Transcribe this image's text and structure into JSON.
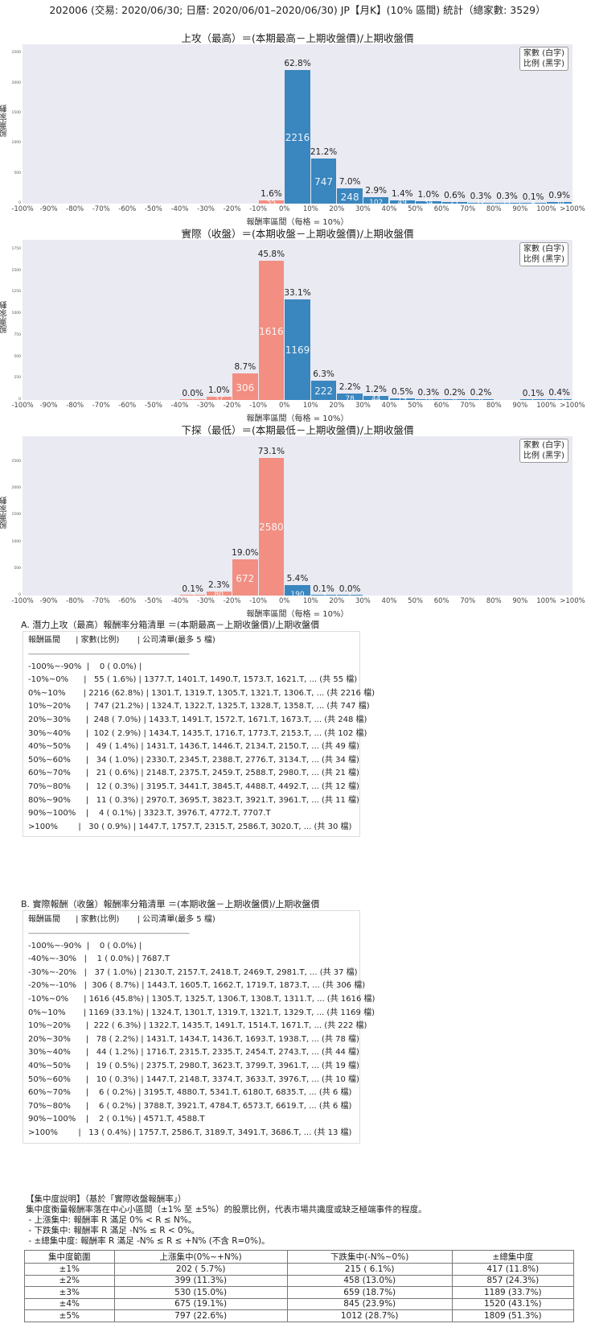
{
  "page": {
    "title": "202006 (交易: 2020/06/30; 日曆: 2020/06/01–2020/06/30) JP【月K】(10% 區間) 統計（總家數: 3529）"
  },
  "chart_common": {
    "ylabel": "股票家數",
    "xlabel": "報酬率區間（每格 = 10%）",
    "legend_line1": "家數 (白字)",
    "legend_line2": "比例 (黑字)",
    "xticks": [
      "-100%",
      "-90%",
      "-80%",
      "-70%",
      "-60%",
      "-50%",
      "-40%",
      "-30%",
      "-20%",
      "-10%",
      "0%",
      "10%",
      "20%",
      "30%",
      "40%",
      "50%",
      "60%",
      "70%",
      "80%",
      "90%",
      "100%",
      ">100%"
    ],
    "colors": {
      "negative": "#f28e82",
      "positive": "#3a86bf",
      "plot_bg": "#eaeaf2"
    }
  },
  "chart_data": [
    {
      "type": "bar",
      "title": "上攻（最高）＝(本期最高－上期收盤價)/上期收盤價",
      "xlabel": "報酬率區間（每格 = 10%）",
      "ylabel": "股票家數",
      "ylim": [
        0,
        2650
      ],
      "yticks": [
        0,
        500,
        1000,
        1500,
        2000,
        2500
      ],
      "categories": [
        "-100%~-90%",
        "-90%~-80%",
        "-80%~-70%",
        "-70%~-60%",
        "-60%~-50%",
        "-50%~-40%",
        "-40%~-30%",
        "-30%~-20%",
        "-20%~-10%",
        "-10%~0%",
        "0%~10%",
        "10%~20%",
        "20%~30%",
        "30%~40%",
        "40%~50%",
        "50%~60%",
        "60%~70%",
        "70%~80%",
        "80%~90%",
        "90%~100%",
        ">100%"
      ],
      "values": [
        0,
        0,
        0,
        0,
        0,
        0,
        0,
        0,
        0,
        55,
        2216,
        747,
        248,
        102,
        49,
        34,
        21,
        12,
        11,
        4,
        30
      ],
      "pct_labels": [
        "",
        "",
        "",
        "",
        "",
        "",
        "",
        "",
        "",
        "1.6%",
        "62.8%",
        "21.2%",
        "7.0%",
        "2.9%",
        "1.4%",
        "1.0%",
        "0.6%",
        "0.3%",
        "0.3%",
        "0.1%",
        "0.9%"
      ],
      "legend": [
        "家數 (白字)",
        "比例 (黑字)"
      ],
      "grid": false
    },
    {
      "type": "bar",
      "title": "實際（收盤）＝(本期收盤－上期收盤價)/上期收盤價",
      "xlabel": "報酬率區間（每格 = 10%）",
      "ylabel": "股票家數",
      "ylim": [
        0,
        1860
      ],
      "yticks": [
        0,
        250,
        500,
        750,
        1000,
        1250,
        1500,
        1750
      ],
      "categories": [
        "-100%~-90%",
        "-90%~-80%",
        "-80%~-70%",
        "-70%~-60%",
        "-60%~-50%",
        "-50%~-40%",
        "-40%~-30%",
        "-30%~-20%",
        "-20%~-10%",
        "-10%~0%",
        "0%~10%",
        "10%~20%",
        "20%~30%",
        "30%~40%",
        "40%~50%",
        "50%~60%",
        "60%~70%",
        "70%~80%",
        "80%~90%",
        "90%~100%",
        ">100%"
      ],
      "values": [
        0,
        0,
        0,
        0,
        0,
        0,
        1,
        37,
        306,
        1616,
        1169,
        222,
        78,
        44,
        19,
        10,
        6,
        6,
        0,
        2,
        13
      ],
      "pct_labels": [
        "",
        "",
        "",
        "",
        "",
        "",
        "0.0%",
        "1.0%",
        "8.7%",
        "45.8%",
        "33.1%",
        "6.3%",
        "2.2%",
        "1.2%",
        "0.5%",
        "0.3%",
        "0.2%",
        "0.2%",
        "",
        "0.1%",
        "0.4%"
      ],
      "legend": [
        "家數 (白字)",
        "比例 (黑字)"
      ],
      "grid": false
    },
    {
      "type": "bar",
      "title": "下探（最低）＝(本期最低－上期收盤價)/上期收盤價",
      "xlabel": "報酬率區間（每格 = 10%）",
      "ylabel": "股票家數",
      "ylim": [
        0,
        2980
      ],
      "yticks": [
        0,
        500,
        1000,
        1500,
        2000,
        2500
      ],
      "categories": [
        "-100%~-90%",
        "-90%~-80%",
        "-80%~-70%",
        "-70%~-60%",
        "-60%~-50%",
        "-50%~-40%",
        "-40%~-30%",
        "-30%~-20%",
        "-20%~-10%",
        "-10%~0%",
        "0%~10%",
        "10%~20%",
        "20%~30%",
        "30%~40%",
        "40%~50%",
        "50%~60%",
        "60%~70%",
        "70%~80%",
        "80%~90%",
        "90%~100%",
        ">100%"
      ],
      "values": [
        0,
        0,
        0,
        0,
        0,
        0,
        3,
        80,
        672,
        2580,
        190,
        3,
        1,
        0,
        0,
        0,
        0,
        0,
        0,
        0,
        0
      ],
      "pct_labels": [
        "",
        "",
        "",
        "",
        "",
        "",
        "0.1%",
        "2.3%",
        "19.0%",
        "73.1%",
        "5.4%",
        "0.1%",
        "0.0%",
        "",
        "",
        "",
        "",
        "",
        "",
        "",
        ""
      ],
      "legend": [
        "家數 (白字)",
        "比例 (黑字)"
      ],
      "grid": false
    }
  ],
  "list_a": {
    "title": "A. 潛力上攻（最高）報酬率分箱清單 ＝(本期最高－上期收盤價)/上期收盤價",
    "header": "報酬區間      | 家數(比例)       | 公司清單(最多 5 檔)",
    "separator": "----------------------------------------------------------------------------------------------------------",
    "rows": [
      "-100%~-90%  |    0 ( 0.0%) |",
      "-10%~0%      |   55 ( 1.6%) | 1377.T, 1401.T, 1490.T, 1573.T, 1621.T, ... (共 55 檔)",
      "0%~10%       | 2216 (62.8%) | 1301.T, 1319.T, 1305.T, 1321.T, 1306.T, ... (共 2216 檔)",
      "10%~20%      |  747 (21.2%) | 1324.T, 1322.T, 1325.T, 1328.T, 1358.T, ... (共 747 檔)",
      "20%~30%      |  248 ( 7.0%) | 1433.T, 1491.T, 1572.T, 1671.T, 1673.T, ... (共 248 檔)",
      "30%~40%      |  102 ( 2.9%) | 1434.T, 1435.T, 1716.T, 1773.T, 2153.T, ... (共 102 檔)",
      "40%~50%      |   49 ( 1.4%) | 1431.T, 1436.T, 1446.T, 2134.T, 2150.T, ... (共 49 檔)",
      "50%~60%      |   34 ( 1.0%) | 2330.T, 2345.T, 2388.T, 2776.T, 3134.T, ... (共 34 檔)",
      "60%~70%      |   21 ( 0.6%) | 2148.T, 2375.T, 2459.T, 2588.T, 2980.T, ... (共 21 檔)",
      "70%~80%      |   12 ( 0.3%) | 3195.T, 3441.T, 3845.T, 4488.T, 4492.T, ... (共 12 檔)",
      "80%~90%      |   11 ( 0.3%) | 2970.T, 3695.T, 3823.T, 3921.T, 3961.T, ... (共 11 檔)",
      "90%~100%    |    4 ( 0.1%) | 3323.T, 3976.T, 4772.T, 7707.T",
      ">100%        |   30 ( 0.9%) | 1447.T, 1757.T, 2315.T, 2586.T, 3020.T, ... (共 30 檔)"
    ]
  },
  "list_b": {
    "title": "B. 實際報酬（收盤）報酬率分箱清單 ＝(本期收盤－上期收盤價)/上期收盤價",
    "header": "報酬區間      | 家數(比例)       | 公司清單(最多 5 檔)",
    "separator": "----------------------------------------------------------------------------------------------------------",
    "rows": [
      "-100%~-90%  |    0 ( 0.0%) |",
      "-40%~-30%   |    1 ( 0.0%) | 7687.T",
      "-30%~-20%   |   37 ( 1.0%) | 2130.T, 2157.T, 2418.T, 2469.T, 2981.T, ... (共 37 檔)",
      "-20%~-10%   |  306 ( 8.7%) | 1443.T, 1605.T, 1662.T, 1719.T, 1873.T, ... (共 306 檔)",
      "-10%~0%      | 1616 (45.8%) | 1305.T, 1325.T, 1306.T, 1308.T, 1311.T, ... (共 1616 檔)",
      "0%~10%       | 1169 (33.1%) | 1324.T, 1301.T, 1319.T, 1321.T, 1329.T, ... (共 1169 檔)",
      "10%~20%      |  222 ( 6.3%) | 1322.T, 1435.T, 1491.T, 1514.T, 1671.T, ... (共 222 檔)",
      "20%~30%      |   78 ( 2.2%) | 1431.T, 1434.T, 1436.T, 1693.T, 1938.T, ... (共 78 檔)",
      "30%~40%      |   44 ( 1.2%) | 1716.T, 2315.T, 2335.T, 2454.T, 2743.T, ... (共 44 檔)",
      "40%~50%      |   19 ( 0.5%) | 2375.T, 2980.T, 3623.T, 3799.T, 3961.T, ... (共 19 檔)",
      "50%~60%      |   10 ( 0.3%) | 1447.T, 2148.T, 3374.T, 3633.T, 3976.T, ... (共 10 檔)",
      "60%~70%      |    6 ( 0.2%) | 3195.T, 4880.T, 5341.T, 6180.T, 6835.T, ... (共 6 檔)",
      "70%~80%      |    6 ( 0.2%) | 3788.T, 3921.T, 4784.T, 6573.T, 6619.T, ... (共 6 檔)",
      "90%~100%    |    2 ( 0.1%) | 4571.T, 4588.T",
      ">100%        |   13 ( 0.4%) | 1757.T, 2586.T, 3189.T, 3491.T, 3686.T, ... (共 13 檔)"
    ]
  },
  "concentration": {
    "heading": "【集中度說明】（基於「實際收盤報酬率」）",
    "description": "集中度衡量報酬率落在中心小區間（±1% 至 ±5%）的股票比例，代表市場共識度或缺乏極端事件的程度。",
    "bullets": [
      " - 上漲集中: 報酬率 R 滿足 0% < R ≤ N%。",
      " - 下跌集中: 報酬率 R 滿足 -N% ≤ R < 0%。",
      " - ±總集中度: 報酬率 R 滿足 -N% ≤ R ≤ +N% (不含 R=0%)。"
    ],
    "columns": [
      "集中度範圍",
      "上漲集中(0%~+N%)",
      "下跌集中(-N%~0%)",
      "±總集中度"
    ],
    "rows": [
      [
        "±1%",
        "202 ( 5.7%)",
        "215 ( 6.1%)",
        "417 (11.8%)"
      ],
      [
        "±2%",
        "399 (11.3%)",
        "458 (13.0%)",
        "857 (24.3%)"
      ],
      [
        "±3%",
        "530 (15.0%)",
        "659 (18.7%)",
        "1189 (33.7%)"
      ],
      [
        "±4%",
        "675 (19.1%)",
        "845 (23.9%)",
        "1520 (43.1%)"
      ],
      [
        "±5%",
        "797 (22.6%)",
        "1012 (28.7%)",
        "1809 (51.3%)"
      ]
    ]
  }
}
